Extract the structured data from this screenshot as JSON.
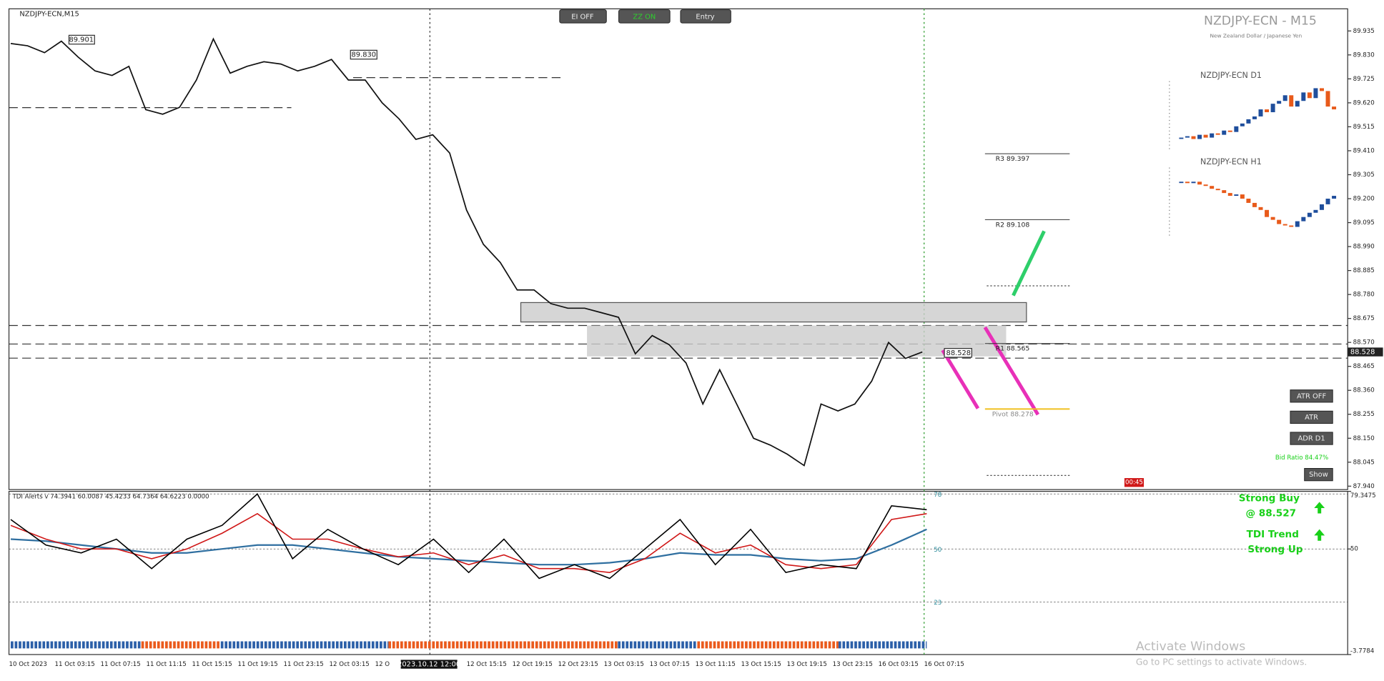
{
  "window": {
    "symbol_label": "NZDJPY-ECN,M15",
    "buttons": [
      "EI OFF",
      "ZZ ON",
      "Entry"
    ],
    "title": "NZDJPY-ECN - M15",
    "subtitle": "New Zealand Dollar / Japanese Yen"
  },
  "main_chart": {
    "type": "line",
    "closes": [
      89.88,
      89.87,
      89.84,
      89.89,
      89.82,
      89.76,
      89.74,
      89.78,
      89.59,
      89.57,
      89.6,
      89.72,
      89.9,
      89.75,
      89.78,
      89.8,
      89.79,
      89.76,
      89.78,
      89.81,
      89.72,
      89.72,
      89.62,
      89.55,
      89.46,
      89.48,
      89.4,
      89.15,
      89.0,
      88.92,
      88.8,
      88.8,
      88.74,
      88.72,
      88.72,
      88.7,
      88.68,
      88.52,
      88.6,
      88.56,
      88.48,
      88.3,
      88.45,
      88.3,
      88.15,
      88.12,
      88.08,
      88.03,
      88.3,
      88.27,
      88.3,
      88.4,
      88.57,
      88.5,
      88.528
    ],
    "color": "#111111",
    "ylim": [
      87.925,
      90.032
    ],
    "yticks": [
      89.935,
      {
        "value": 89.83,
        "label": "89.830"
      },
      89.725,
      {
        "value": 89.62,
        "label": "89.620"
      },
      89.515,
      {
        "value": 89.41,
        "label": "89.410"
      },
      89.305,
      {
        "value": 89.2,
        "label": "89.200"
      },
      89.095,
      {
        "value": 88.99,
        "label": "88.990"
      },
      88.885,
      {
        "value": 88.78,
        "label": "88.780"
      },
      88.675,
      {
        "value": 88.57,
        "label": "88.570"
      },
      88.465,
      {
        "value": 88.36,
        "label": "88.360"
      },
      88.255,
      {
        "value": 88.15,
        "label": "88.150"
      },
      88.045,
      {
        "value": 87.94,
        "label": "87.940"
      }
    ],
    "price_tags": [
      "89.901",
      "89.830",
      "88.528"
    ],
    "current_price": "88.528",
    "pivots": [
      {
        "label": "R3 89.397",
        "value": 89.397
      },
      {
        "label": "R2 89.108",
        "value": 89.108
      },
      {
        "label": "R1 88.565",
        "value": 88.565
      },
      {
        "label": "Pivot 88.278",
        "value": 88.278
      }
    ],
    "x_labels": [
      "10 Oct 2023",
      "11 Oct 03:15",
      "11 Oct 07:15",
      "11 Oct 11:15",
      "11 Oct 15:15",
      "11 Oct 19:15",
      "11 Oct 23:15",
      "12 Oct 03:15",
      "12 O",
      "12 Oct 15:15",
      "12 Oct 19:15",
      "12 Oct 23:15",
      "13 Oct 03:15",
      "13 Oct 07:15",
      "13 Oct 11:15",
      "13 Oct 15:15",
      "13 Oct 19:15",
      "13 Oct 23:15",
      "16 Oct 03:15",
      "16 Oct 07:15"
    ],
    "cursor_time": "2023.10.12 12:00"
  },
  "mini_charts": [
    {
      "label": "NZDJPY-ECN D1",
      "ylim": [
        89.3,
        89.8
      ],
      "closes": [
        89.4,
        89.41,
        89.39,
        89.42,
        89.4,
        89.43,
        89.42,
        89.45,
        89.44,
        89.48,
        89.5,
        89.53,
        89.55,
        89.6,
        89.58,
        89.64,
        89.66,
        89.7,
        89.62,
        89.66,
        89.72,
        89.68,
        89.75,
        89.73,
        89.62,
        89.6
      ]
    },
    {
      "label": "NZDJPY-ECN H1",
      "ylim": [
        88.9,
        89.4
      ],
      "closes": [
        89.3,
        89.29,
        89.3,
        89.28,
        89.27,
        89.25,
        89.24,
        89.22,
        89.2,
        89.21,
        89.18,
        89.15,
        89.12,
        89.1,
        89.05,
        89.03,
        89.0,
        88.99,
        88.98,
        89.02,
        89.05,
        89.08,
        89.1,
        89.14,
        89.18,
        89.2
      ]
    }
  ],
  "indicator": {
    "header": "TDI Alerts v 74.3941 60.0087 45.4233 64.7364 64.6223 0.0000",
    "ylim": [
      -3.7784,
      79.3475
    ],
    "yticks": [
      79.3475,
      50,
      -3.7784
    ],
    "levels": [
      78,
      50,
      23
    ],
    "lines": [
      {
        "color": "#2f6fa0",
        "values": [
          55,
          54,
          52,
          50,
          48,
          48,
          50,
          52,
          52,
          50,
          48,
          46,
          45,
          44,
          43,
          42,
          42,
          43,
          45,
          48,
          47,
          47,
          45,
          44,
          45,
          52,
          60
        ]
      },
      {
        "color": "#d01818",
        "values": [
          62,
          55,
          50,
          50,
          45,
          50,
          58,
          68,
          55,
          55,
          50,
          46,
          48,
          42,
          47,
          40,
          40,
          38,
          45,
          58,
          48,
          52,
          42,
          40,
          42,
          65,
          68
        ]
      },
      {
        "color": "#000000",
        "values": [
          65,
          52,
          48,
          55,
          40,
          55,
          62,
          78,
          45,
          60,
          50,
          42,
          55,
          38,
          55,
          35,
          42,
          35,
          50,
          65,
          42,
          60,
          38,
          42,
          40,
          72,
          70
        ]
      }
    ]
  },
  "signals": {
    "line1": "Strong Buy",
    "line2": "@ 88.527",
    "line3": "TDI Trend",
    "line4": "Strong Up"
  },
  "panel": {
    "buttons": [
      "ATR OFF",
      "ATR",
      "ADR D1",
      "Show"
    ],
    "bid_ratio": "Bid Ratio 84.47%",
    "timer": "00:45"
  },
  "watermark": {
    "line1": "Activate Windows",
    "line2": "Go to PC settings to activate Windows."
  }
}
